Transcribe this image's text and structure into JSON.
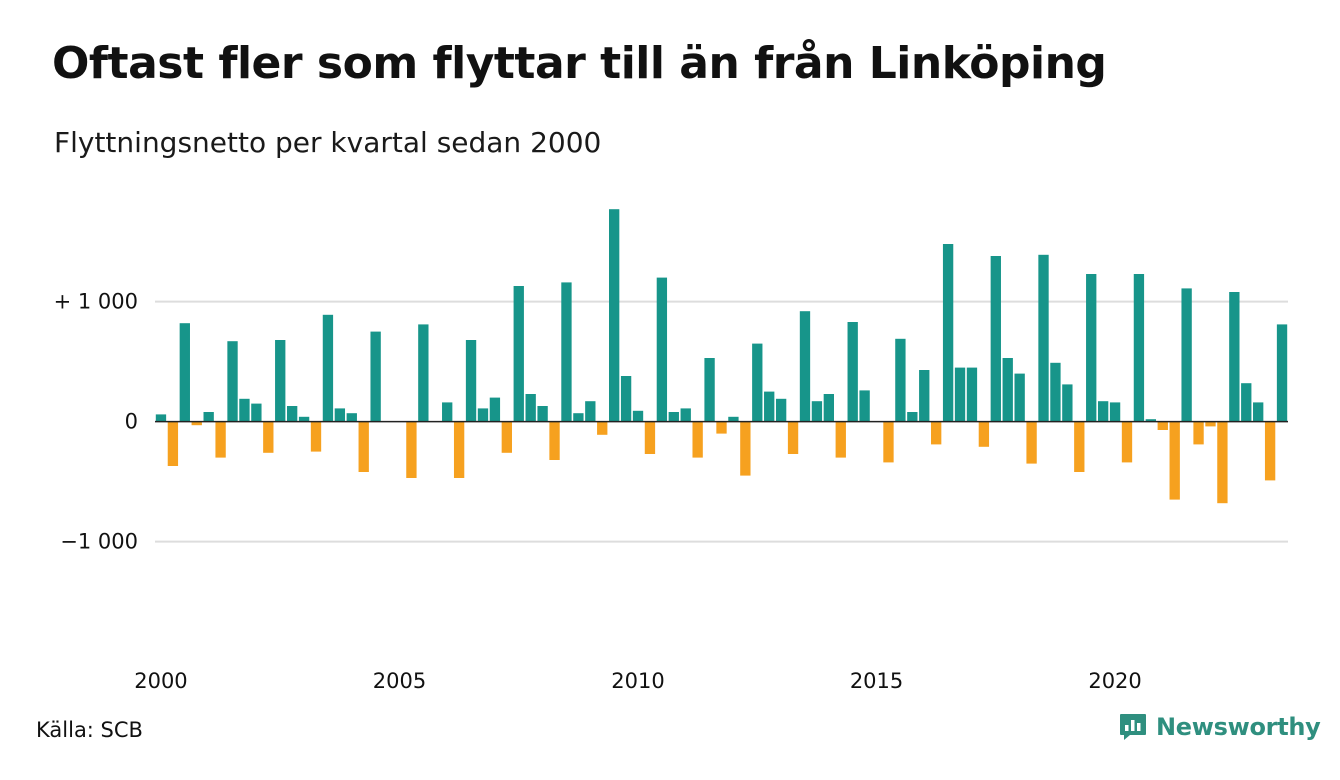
{
  "title": "Oftast fler som flyttar till än från Linköping",
  "subtitle": "Flyttningsnetto per kvartal sedan 2000",
  "source": "Källa: SCB",
  "brand": {
    "name": "Newsworthy",
    "icon": "newsworthy-logo-icon"
  },
  "colors": {
    "positive": "#17958a",
    "negative": "#f6a11f",
    "grid": "#dddddd",
    "brand": "#2f8f7f"
  },
  "chart_data": {
    "type": "bar",
    "x_start": "2000 Q1",
    "x_tick_labels": [
      "2000",
      "2005",
      "2010",
      "2015",
      "2020"
    ],
    "y_tick_labels": [
      "+ 1 000",
      "0",
      "−1 000"
    ],
    "y_ticks": [
      1000,
      0,
      -1000
    ],
    "ylim": [
      -1870,
      1880
    ],
    "grid": true,
    "values": [
      60,
      -370,
      820,
      -30,
      80,
      -300,
      670,
      190,
      150,
      -260,
      680,
      130,
      40,
      -250,
      890,
      110,
      70,
      -420,
      750,
      0,
      0,
      -470,
      810,
      0,
      160,
      -470,
      680,
      110,
      200,
      -260,
      1130,
      230,
      130,
      -320,
      1160,
      70,
      170,
      -110,
      1770,
      380,
      90,
      -270,
      1200,
      80,
      110,
      -300,
      530,
      -100,
      40,
      -450,
      650,
      250,
      190,
      -270,
      920,
      170,
      230,
      -300,
      830,
      260,
      0,
      -340,
      690,
      80,
      430,
      -190,
      1480,
      450,
      450,
      -210,
      1380,
      530,
      400,
      -350,
      1390,
      490,
      310,
      -420,
      1230,
      170,
      160,
      -340,
      1230,
      20,
      -70,
      -650,
      1110,
      -190,
      -40,
      -680,
      1080,
      320,
      160,
      -490,
      810
    ]
  }
}
